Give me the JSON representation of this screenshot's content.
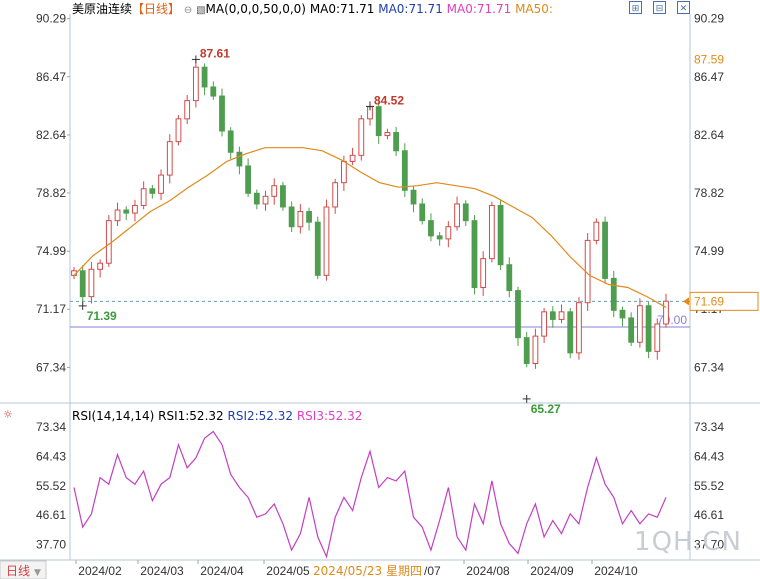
{
  "header": {
    "title": "美原油连续",
    "period": "【日线】",
    "ma_params": "MA(0,0,0,50,0,0)",
    "ma1": "MA0:71.71",
    "ma2": "MA0:71.71",
    "ma3": "MA0:71.71",
    "ma4": "MA50:",
    "colors": {
      "title": "#000000",
      "period": "#e0601a",
      "ma1": "#000000",
      "ma2": "#1f3fb0",
      "ma3": "#e040c0",
      "ma4": "#e08a1a"
    }
  },
  "rsi_header": {
    "label": "RSI(14,14,14)",
    "rsi1": "RSI1:52.32",
    "rsi2": "RSI2:52.32",
    "rsi3": "RSI3:52.32"
  },
  "bottom_bar": {
    "period_button": "日线",
    "crosshair_date": "2024/05/23 星期四"
  },
  "watermark": "1QH.CN",
  "chart_data": [
    {
      "type": "candlestick",
      "series_name": "美原油连续",
      "ylim": [
        65.0,
        90.6
      ],
      "left_ticks": [
        "90.29",
        "86.47",
        "82.64",
        "78.82",
        "74.99",
        "71.17",
        "67.34"
      ],
      "right_ticks": [
        "90.29",
        "86.47",
        "82.64",
        "78.82",
        "74.99",
        "71.17",
        "67.34"
      ],
      "x_ticks": [
        "2024/02",
        "2024/03",
        "2024/04",
        "2024/05",
        "2024/08",
        "2024/09",
        "2024/10"
      ],
      "annotations": [
        {
          "text": "87.61",
          "value": 87.61,
          "kind": "high",
          "color": "#c0392b"
        },
        {
          "text": "84.52",
          "value": 84.52,
          "kind": "high",
          "color": "#c0392b"
        },
        {
          "text": "71.39",
          "value": 71.39,
          "kind": "low",
          "color": "#3a9a3a"
        },
        {
          "text": "65.27",
          "value": 65.27,
          "kind": "low",
          "color": "#3a9a3a"
        }
      ],
      "price_badges": [
        {
          "text": "87.59",
          "value": 87.59,
          "color": "#e08a1a"
        },
        {
          "text": "71.69",
          "value": 71.69,
          "color": "#e08a1a"
        }
      ],
      "reference_lines": [
        {
          "value": 71.69,
          "style": "dashed",
          "color": "#5aa0c8"
        },
        {
          "value": 70.0,
          "style": "solid",
          "color": "#8a7fd8",
          "label": "70.00"
        }
      ],
      "ma50": [
        73.4,
        74.7,
        75.6,
        76.6,
        77.6,
        78.3,
        79.2,
        80.0,
        80.9,
        81.4,
        81.8,
        81.8,
        81.8,
        81.6,
        81.0,
        80.2,
        79.5,
        79.2,
        79.3,
        79.5,
        79.3,
        79.1,
        78.6,
        77.9,
        77.2,
        76.0,
        74.6,
        73.4,
        72.8,
        72.6,
        72.0,
        71.3
      ],
      "closes": [
        73.7,
        72.0,
        73.8,
        74.2,
        77.0,
        77.7,
        77.5,
        78.0,
        79.1,
        78.8,
        80.0,
        82.2,
        83.7,
        84.9,
        87.1,
        85.8,
        85.2,
        82.9,
        81.5,
        80.6,
        78.8,
        78.1,
        78.6,
        79.3,
        77.9,
        76.6,
        77.6,
        76.9,
        73.4,
        77.9,
        79.5,
        80.9,
        81.3,
        83.7,
        84.5,
        82.6,
        82.8,
        81.6,
        79.0,
        78.1,
        77.0,
        76.0,
        75.8,
        76.6,
        78.1,
        77.0,
        72.6,
        74.5,
        78.0,
        74.1,
        72.4,
        69.3,
        67.6,
        69.4,
        71.0,
        70.5,
        71.0,
        68.3,
        71.6,
        75.7,
        76.9,
        73.2,
        71.1,
        70.6,
        69.0,
        71.4,
        68.4,
        70.2,
        71.7
      ]
    },
    {
      "type": "line",
      "indicator": "RSI(14,14,14)",
      "ylim": [
        33.0,
        75.5
      ],
      "left_ticks": [
        "73.34",
        "64.43",
        "55.52",
        "46.61",
        "37.70"
      ],
      "right_ticks": [
        "73.34",
        "64.43",
        "55.52",
        "46.61",
        "37.70"
      ],
      "series": [
        {
          "name": "RSI1",
          "color": "#c23fc2",
          "values": [
            55,
            43,
            47,
            58,
            56,
            65,
            58,
            56,
            60,
            51,
            56,
            58,
            68,
            61,
            64,
            70,
            72,
            68,
            59,
            55,
            52,
            46,
            47,
            50,
            44,
            36,
            41,
            52,
            40,
            34,
            46,
            52,
            48,
            58,
            66,
            55,
            58,
            57,
            60,
            46,
            43,
            36,
            45,
            55,
            40,
            36,
            50,
            44,
            57,
            44,
            38,
            35,
            44,
            50,
            40,
            45,
            41,
            47,
            44,
            55,
            64,
            56,
            52,
            44,
            48,
            44,
            47,
            46,
            52
          ]
        }
      ]
    }
  ]
}
